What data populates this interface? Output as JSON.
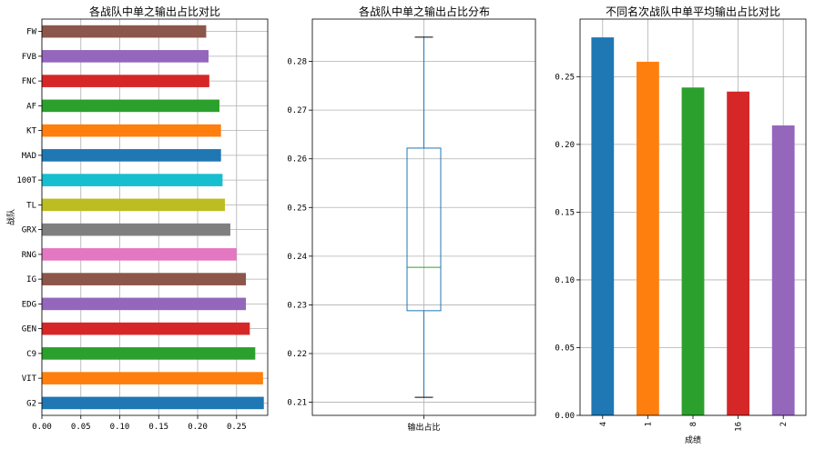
{
  "colors": [
    "#1f77b4",
    "#ff7f0e",
    "#2ca02c",
    "#d62728",
    "#9467bd",
    "#8c564b",
    "#e377c2",
    "#7f7f7f",
    "#bcbd22",
    "#17becf"
  ],
  "chart_data": [
    {
      "type": "bar",
      "orientation": "horizontal",
      "title": "各战队中单之输出占比对比",
      "xlabel": "",
      "ylabel": "战队",
      "categories": [
        "G2",
        "VIT",
        "C9",
        "GEN",
        "EDG",
        "IG",
        "RNG",
        "GRX",
        "TL",
        "100T",
        "MAD",
        "KT",
        "AF",
        "FNC",
        "FVB",
        "FW"
      ],
      "values": [
        0.285,
        0.284,
        0.274,
        0.267,
        0.262,
        0.262,
        0.25,
        0.242,
        0.235,
        0.232,
        0.23,
        0.23,
        0.228,
        0.215,
        0.214,
        0.211
      ],
      "xlim": [
        0,
        0.29
      ],
      "xticks": [
        0.0,
        0.05,
        0.1,
        0.15,
        0.2,
        0.25
      ],
      "xtick_labels": [
        "0.00",
        "0.05",
        "0.10",
        "0.15",
        "0.20",
        "0.25"
      ],
      "grid": true
    },
    {
      "type": "box",
      "title": "各战队中单之输出占比分布",
      "categories": [
        "输出占比"
      ],
      "box": {
        "min": 0.211,
        "q1": 0.2288,
        "median": 0.2377,
        "q3": 0.2622,
        "max": 0.285
      },
      "ylim": [
        0.2073,
        0.2887
      ],
      "yticks": [
        0.21,
        0.22,
        0.23,
        0.24,
        0.25,
        0.26,
        0.27,
        0.28
      ],
      "ytick_labels": [
        "0.21",
        "0.22",
        "0.23",
        "0.24",
        "0.25",
        "0.26",
        "0.27",
        "0.28"
      ],
      "grid": true
    },
    {
      "type": "bar",
      "orientation": "vertical",
      "title": "不同名次战队中单平均输出占比对比",
      "xlabel": "成绩",
      "ylabel": "",
      "categories": [
        "4",
        "1",
        "8",
        "16",
        "2"
      ],
      "values": [
        0.279,
        0.261,
        0.242,
        0.239,
        0.214
      ],
      "ylim": [
        0,
        0.2925
      ],
      "yticks": [
        0.0,
        0.05,
        0.1,
        0.15,
        0.2,
        0.25
      ],
      "ytick_labels": [
        "0.00",
        "0.05",
        "0.10",
        "0.15",
        "0.20",
        "0.25"
      ],
      "grid": true
    }
  ]
}
